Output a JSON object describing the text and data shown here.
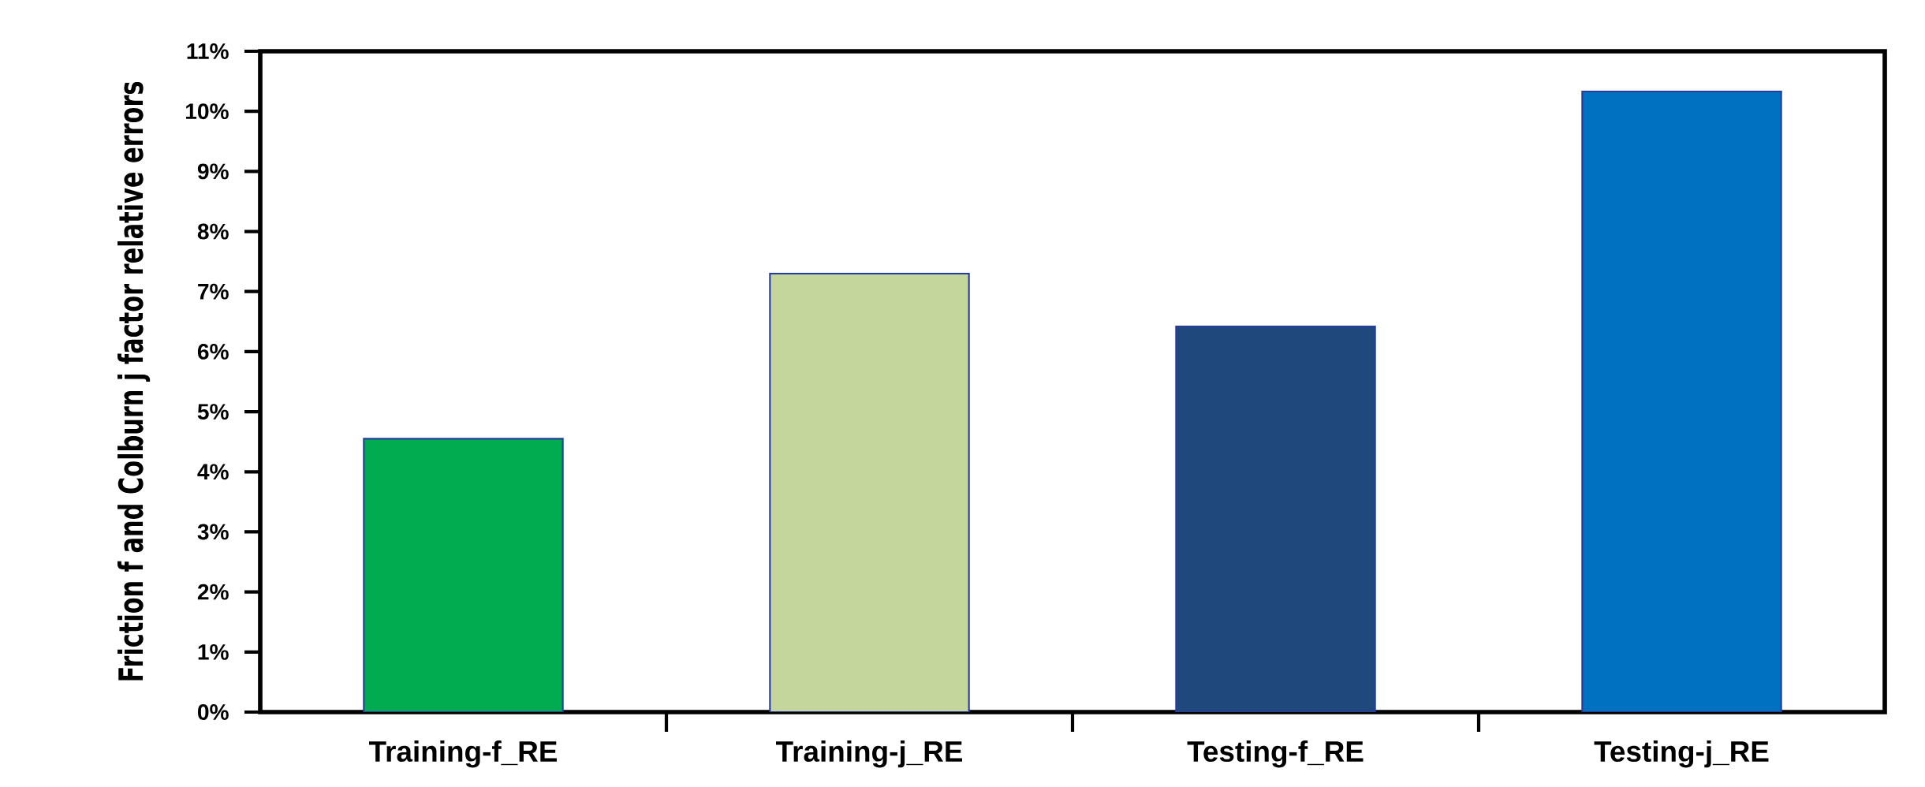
{
  "chart_data": {
    "type": "bar",
    "ylabel": "Friction f and Colburn j factor  relative errors",
    "categories": [
      "Training-f_RE",
      "Training-j_RE",
      "Testing-f_RE",
      "Testing-j_RE"
    ],
    "values": [
      4.55,
      7.3,
      6.42,
      10.33
    ],
    "colors": [
      "#00ac4f",
      "#c4d69b",
      "#1f497d",
      "#0070c0"
    ],
    "ylim": [
      0,
      11
    ],
    "yticks": [
      {
        "value": 0,
        "label": "0%"
      },
      {
        "value": 1,
        "label": "1%"
      },
      {
        "value": 2,
        "label": "2%"
      },
      {
        "value": 3,
        "label": "3%"
      },
      {
        "value": 4,
        "label": "4%"
      },
      {
        "value": 5,
        "label": "5%"
      },
      {
        "value": 6,
        "label": "6%"
      },
      {
        "value": 7,
        "label": "7%"
      },
      {
        "value": 8,
        "label": "8%"
      },
      {
        "value": 9,
        "label": "9%"
      },
      {
        "value": 10,
        "label": "10%"
      },
      {
        "value": 11,
        "label": "11%"
      }
    ],
    "grid": false
  }
}
